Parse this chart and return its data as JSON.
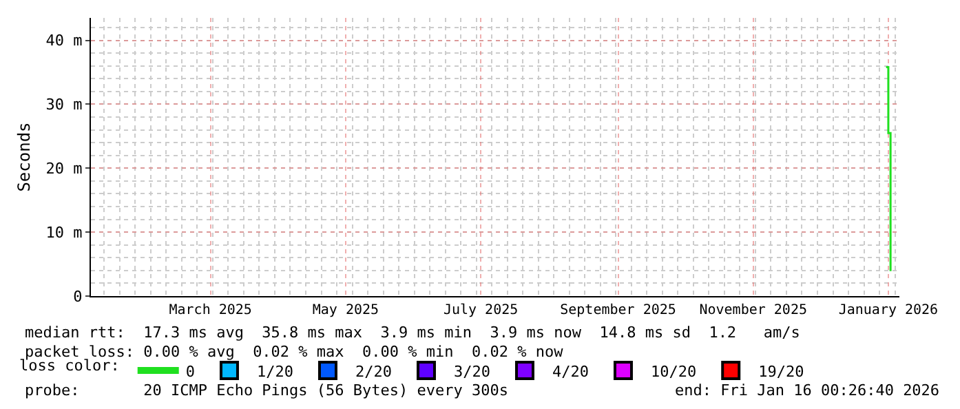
{
  "chart_data": {
    "type": "step",
    "ylabel": "Seconds",
    "x": [
      "2026-01-14",
      "2026-01-15",
      "2026-01-16"
    ],
    "series": [
      {
        "name": "0",
        "color": "#20e020",
        "values": [
          35.8,
          25.5,
          3.9
        ]
      },
      {
        "name": "1/20",
        "color": "#00b8ff",
        "type": "scatter",
        "marker": "square",
        "values": [
          null,
          null,
          null
        ]
      },
      {
        "name": "2/20",
        "color": "#0059ff",
        "type": "scatter",
        "marker": "square",
        "values": [
          null,
          null,
          null
        ]
      },
      {
        "name": "3/20",
        "color": "#5e00ff",
        "type": "scatter",
        "marker": "square",
        "values": [
          null,
          null,
          null
        ]
      },
      {
        "name": "4/20",
        "color": "#7e00ff",
        "type": "scatter",
        "marker": "square",
        "values": [
          null,
          null,
          null
        ]
      },
      {
        "name": "10/20",
        "color": "#dd00ff",
        "type": "scatter",
        "marker": "square",
        "values": [
          null,
          null,
          null
        ]
      },
      {
        "name": "19/20",
        "color": "#ff0000",
        "type": "scatter",
        "marker": "square",
        "values": [
          null,
          null,
          null
        ]
      }
    ],
    "legend_title": "loss color:",
    "legend": "bottom",
    "xlim": [
      "2025-01-20",
      "2026-01-20"
    ],
    "xticks": [
      {
        "value": "2025-03-15",
        "label": "March 2025"
      },
      {
        "value": "2025-05-15",
        "label": "May 2025"
      },
      {
        "value": "2025-07-15",
        "label": "July 2025"
      },
      {
        "value": "2025-09-15",
        "label": "September 2025"
      },
      {
        "value": "2025-11-15",
        "label": "November 2025"
      },
      {
        "value": "2026-01-15",
        "label": "January 2026"
      }
    ],
    "ylim": [
      0,
      43.5
    ],
    "yticks": [
      0,
      {
        "value": 10,
        "label": "10 m"
      },
      {
        "value": 20,
        "label": "20 m"
      },
      {
        "value": 30,
        "label": "30 m"
      },
      {
        "value": 40,
        "label": "40 m"
      }
    ],
    "grid": true,
    "annotations": [
      "median rtt:  17.3 ms avg  35.8 ms max  3.9 ms min  3.9 ms now  14.8 ms sd  1.2   am/s",
      "packet loss: 0.00 % avg  0.02 % max  0.00 % min  0.02 % now",
      "probe:       20 ICMP Echo Pings (56 Bytes) every 300s",
      "end: Fri Jan 16 00:26:40 2026"
    ]
  }
}
